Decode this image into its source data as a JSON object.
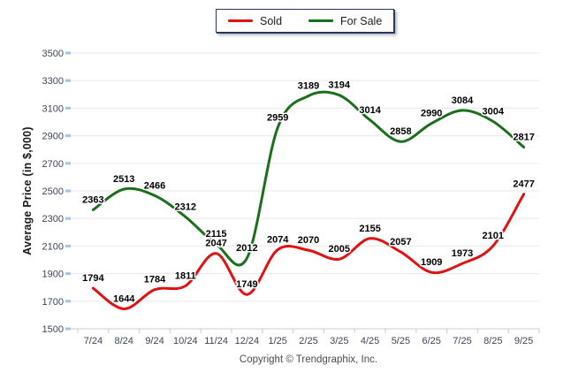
{
  "legend": {
    "items": [
      {
        "label": "Sold",
        "color": "#e01111"
      },
      {
        "label": "For Sale",
        "color": "#1b6e1b"
      }
    ]
  },
  "y_axis": {
    "title": "Average Price (in $,000)"
  },
  "footer": {
    "copyright": "Copyright © Trendgraphix, Inc."
  },
  "chart_data": {
    "type": "line",
    "title": "",
    "xlabel": "",
    "ylabel": "Average Price (in $,000)",
    "categories": [
      "7/24",
      "8/24",
      "9/24",
      "10/24",
      "11/24",
      "12/24",
      "1/25",
      "2/25",
      "3/25",
      "4/25",
      "5/25",
      "6/25",
      "7/25",
      "8/25",
      "9/25"
    ],
    "series": [
      {
        "name": "Sold",
        "color": "#e01111",
        "values": [
          1794,
          1644,
          1784,
          1811,
          2047,
          1749,
          2074,
          2070,
          2005,
          2155,
          2057,
          1909,
          1973,
          2101,
          2477
        ]
      },
      {
        "name": "For Sale",
        "color": "#1b6e1b",
        "values": [
          2363,
          2513,
          2466,
          2312,
          2115,
          2012,
          2959,
          3189,
          3194,
          3014,
          2858,
          2990,
          3084,
          3004,
          2817
        ]
      }
    ],
    "ylim": [
      1500,
      3500
    ],
    "ytick_step": 200,
    "grid": true,
    "legend_position": "top-center",
    "smooth": true,
    "colors": {
      "grid": "#ececec",
      "axis_line": "#d2d8e2",
      "x_tick": "#c8d0de",
      "y_tick": "#9ec5ef",
      "axis_text": "#3f4557",
      "point_label": "#000000"
    }
  }
}
